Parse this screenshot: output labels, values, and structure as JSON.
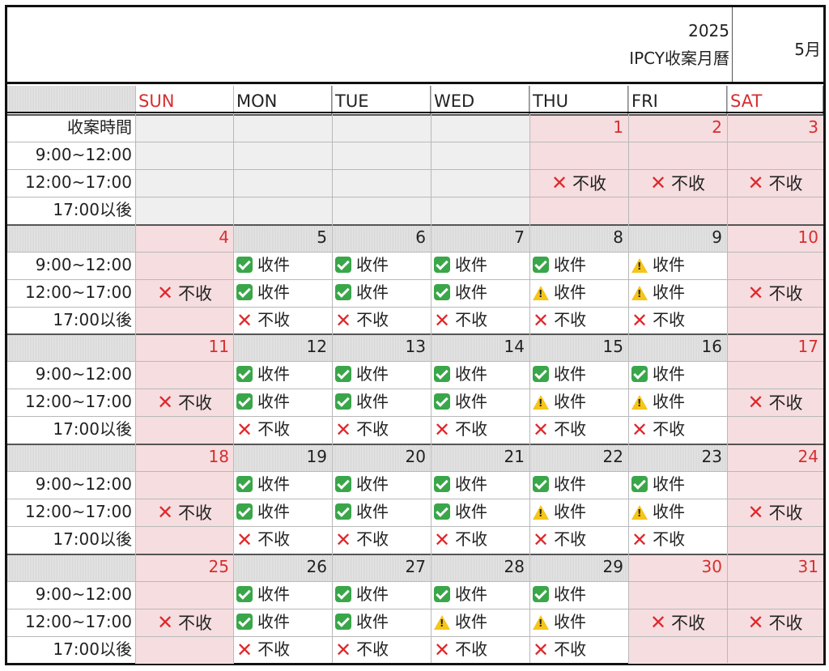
{
  "header": {
    "year": "2025",
    "title": "IPCY收案月曆",
    "month": "5月"
  },
  "weekdays": [
    "SUN",
    "MON",
    "TUE",
    "WED",
    "THU",
    "FRI",
    "SAT"
  ],
  "time_labels": {
    "heading": "收案時間",
    "morning": "9:00~12:00",
    "afternoon": "12:00~17:00",
    "evening": "17:00以後"
  },
  "status_text": {
    "accept": "收件",
    "closed": "不收"
  },
  "icons": {
    "accept": "green-check-icon",
    "limited": "warning-icon",
    "closed": "red-cross-icon"
  },
  "colors": {
    "weekend_text": "#d62f2f",
    "holiday_fill": "#f6dde0",
    "accept_icon": "#3aa64a",
    "closed_icon": "#e0282b",
    "warning_icon": "#f5c518"
  },
  "weeks": [
    {
      "days": [
        {
          "col": 4,
          "date": "1",
          "red": true,
          "closed": true
        },
        {
          "col": 5,
          "date": "2",
          "red": true,
          "closed": true
        },
        {
          "col": 6,
          "date": "3",
          "red": true,
          "closed": true
        }
      ]
    },
    {
      "days": [
        {
          "col": 0,
          "date": "4",
          "red": true,
          "closed": true
        },
        {
          "col": 1,
          "date": "5",
          "slots": [
            "ok",
            "ok",
            "no"
          ]
        },
        {
          "col": 2,
          "date": "6",
          "slots": [
            "ok",
            "ok",
            "no"
          ]
        },
        {
          "col": 3,
          "date": "7",
          "slots": [
            "ok",
            "ok",
            "no"
          ]
        },
        {
          "col": 4,
          "date": "8",
          "slots": [
            "ok",
            "warn",
            "no"
          ]
        },
        {
          "col": 5,
          "date": "9",
          "slots": [
            "warn",
            "warn",
            "no"
          ]
        },
        {
          "col": 6,
          "date": "10",
          "red": true,
          "closed": true
        }
      ]
    },
    {
      "days": [
        {
          "col": 0,
          "date": "11",
          "red": true,
          "closed": true
        },
        {
          "col": 1,
          "date": "12",
          "slots": [
            "ok",
            "ok",
            "no"
          ]
        },
        {
          "col": 2,
          "date": "13",
          "slots": [
            "ok",
            "ok",
            "no"
          ]
        },
        {
          "col": 3,
          "date": "14",
          "slots": [
            "ok",
            "ok",
            "no"
          ]
        },
        {
          "col": 4,
          "date": "15",
          "slots": [
            "ok",
            "warn",
            "no"
          ]
        },
        {
          "col": 5,
          "date": "16",
          "slots": [
            "ok",
            "warn",
            "no"
          ]
        },
        {
          "col": 6,
          "date": "17",
          "red": true,
          "closed": true
        }
      ]
    },
    {
      "days": [
        {
          "col": 0,
          "date": "18",
          "red": true,
          "closed": true
        },
        {
          "col": 1,
          "date": "19",
          "slots": [
            "ok",
            "ok",
            "no"
          ]
        },
        {
          "col": 2,
          "date": "20",
          "slots": [
            "ok",
            "ok",
            "no"
          ]
        },
        {
          "col": 3,
          "date": "21",
          "slots": [
            "ok",
            "ok",
            "no"
          ]
        },
        {
          "col": 4,
          "date": "22",
          "slots": [
            "ok",
            "warn",
            "no"
          ]
        },
        {
          "col": 5,
          "date": "23",
          "slots": [
            "ok",
            "warn",
            "no"
          ]
        },
        {
          "col": 6,
          "date": "24",
          "red": true,
          "closed": true
        }
      ]
    },
    {
      "days": [
        {
          "col": 0,
          "date": "25",
          "red": true,
          "closed": true
        },
        {
          "col": 1,
          "date": "26",
          "slots": [
            "ok",
            "ok",
            "no"
          ]
        },
        {
          "col": 2,
          "date": "27",
          "slots": [
            "ok",
            "ok",
            "no"
          ]
        },
        {
          "col": 3,
          "date": "28",
          "slots": [
            "ok",
            "warn",
            "no"
          ]
        },
        {
          "col": 4,
          "date": "29",
          "slots": [
            "ok",
            "warn",
            "no"
          ]
        },
        {
          "col": 5,
          "date": "30",
          "red": true,
          "closed": true
        },
        {
          "col": 6,
          "date": "31",
          "red": true,
          "closed": true
        }
      ]
    }
  ]
}
